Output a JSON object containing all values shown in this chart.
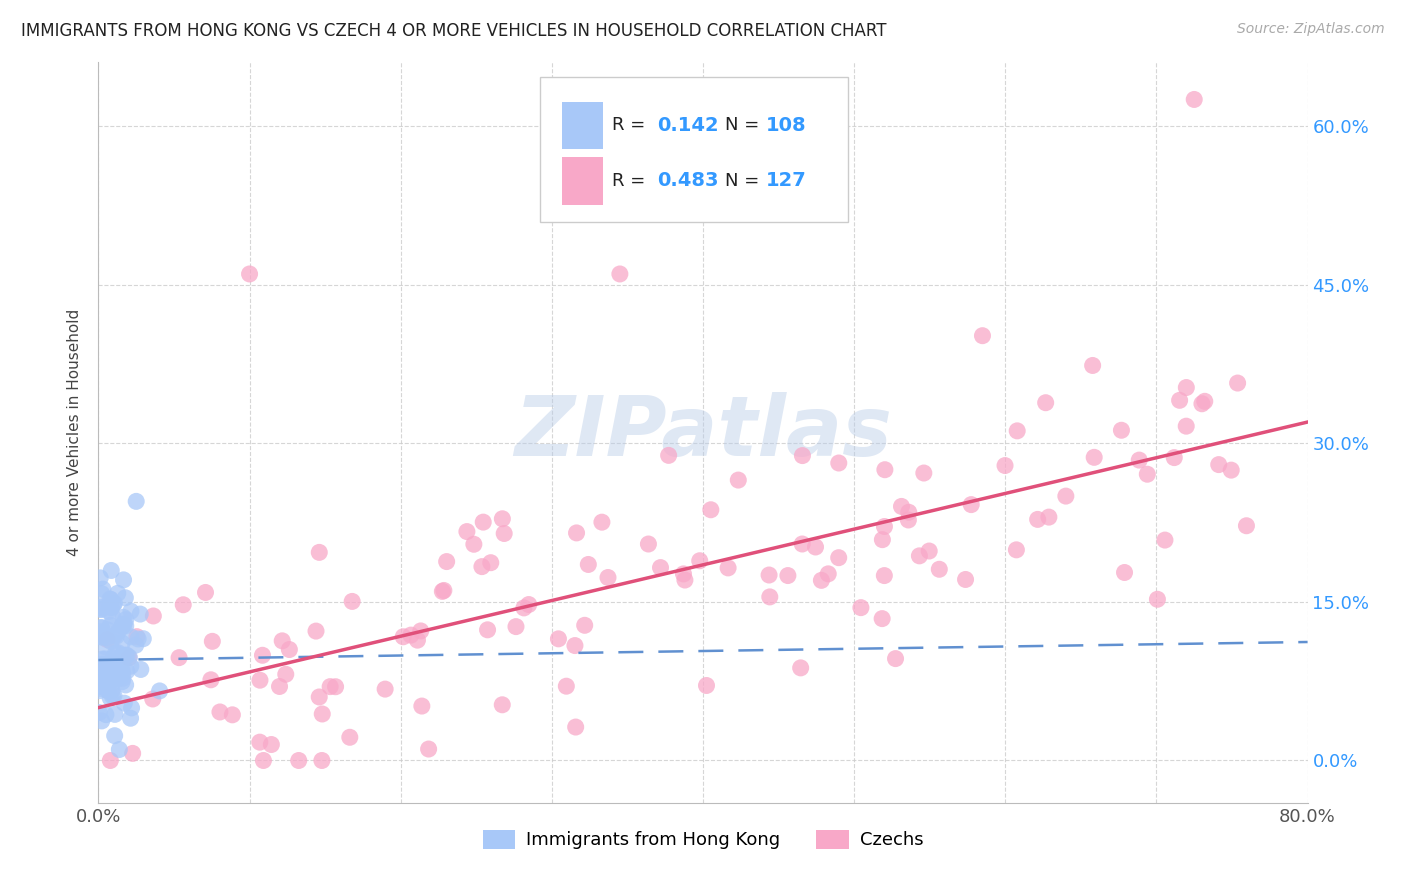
{
  "title": "IMMIGRANTS FROM HONG KONG VS CZECH 4 OR MORE VEHICLES IN HOUSEHOLD CORRELATION CHART",
  "source": "Source: ZipAtlas.com",
  "ylabel": "4 or more Vehicles in Household",
  "watermark": "ZIPatlas",
  "hk_R": 0.142,
  "hk_N": 108,
  "cz_R": 0.483,
  "cz_N": 127,
  "xmin": 0.0,
  "xmax": 0.8,
  "ymin": -0.04,
  "ymax": 0.66,
  "hk_color": "#a8c8f8",
  "cz_color": "#f8a8c8",
  "hk_line_color": "#6090d0",
  "cz_line_color": "#e0507a",
  "grid_color": "#cccccc",
  "background_color": "#ffffff",
  "r_n_color": "#3399ff",
  "y_ticks": [
    0.0,
    0.15,
    0.3,
    0.45,
    0.6
  ],
  "y_tick_labels": [
    "0.0%",
    "15.0%",
    "30.0%",
    "45.0%",
    "60.0%"
  ],
  "x_ticks": [
    0.0,
    0.1,
    0.2,
    0.3,
    0.4,
    0.5,
    0.6,
    0.7,
    0.8
  ],
  "x_tick_labels": [
    "0.0%",
    "",
    "",
    "",
    "",
    "",
    "",
    "",
    "80.0%"
  ]
}
